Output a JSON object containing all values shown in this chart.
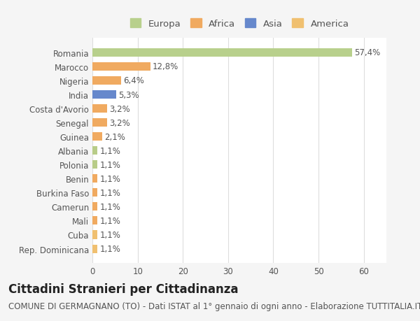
{
  "categories": [
    "Rep. Dominicana",
    "Cuba",
    "Mali",
    "Camerun",
    "Burkina Faso",
    "Benin",
    "Polonia",
    "Albania",
    "Guinea",
    "Senegal",
    "Costa d'Avorio",
    "India",
    "Nigeria",
    "Marocco",
    "Romania"
  ],
  "values": [
    1.1,
    1.1,
    1.1,
    1.1,
    1.1,
    1.1,
    1.1,
    1.1,
    2.1,
    3.2,
    3.2,
    5.3,
    6.4,
    12.8,
    57.4
  ],
  "labels": [
    "1,1%",
    "1,1%",
    "1,1%",
    "1,1%",
    "1,1%",
    "1,1%",
    "1,1%",
    "1,1%",
    "2,1%",
    "3,2%",
    "3,2%",
    "5,3%",
    "6,4%",
    "12,8%",
    "57,4%"
  ],
  "colors": [
    "#f0c070",
    "#f0c070",
    "#f0aa60",
    "#f0aa60",
    "#f0aa60",
    "#f0aa60",
    "#b8cc88",
    "#b8cc88",
    "#f0aa60",
    "#f0aa60",
    "#f0aa60",
    "#6688cc",
    "#f0aa60",
    "#f0aa60",
    "#b8d08c"
  ],
  "continent": [
    "America",
    "America",
    "Africa",
    "Africa",
    "Africa",
    "Africa",
    "Europa",
    "Europa",
    "Africa",
    "Africa",
    "Africa",
    "Asia",
    "Africa",
    "Africa",
    "Europa"
  ],
  "legend_labels": [
    "Europa",
    "Africa",
    "Asia",
    "America"
  ],
  "legend_colors": [
    "#b8d08c",
    "#f0aa60",
    "#6688cc",
    "#f0c070"
  ],
  "title": "Cittadini Stranieri per Cittadinanza",
  "subtitle": "COMUNE DI GERMAGNANO (TO) - Dati ISTAT al 1° gennaio di ogni anno - Elaborazione TUTTITALIA.IT",
  "xlim": [
    0,
    65
  ],
  "xticks": [
    0,
    10,
    20,
    30,
    40,
    50,
    60
  ],
  "bg_color": "#f5f5f5",
  "plot_bg_color": "#ffffff",
  "grid_color": "#dddddd",
  "bar_height": 0.6,
  "title_fontsize": 12,
  "subtitle_fontsize": 8.5,
  "label_fontsize": 8.5,
  "tick_fontsize": 8.5,
  "legend_fontsize": 9.5
}
